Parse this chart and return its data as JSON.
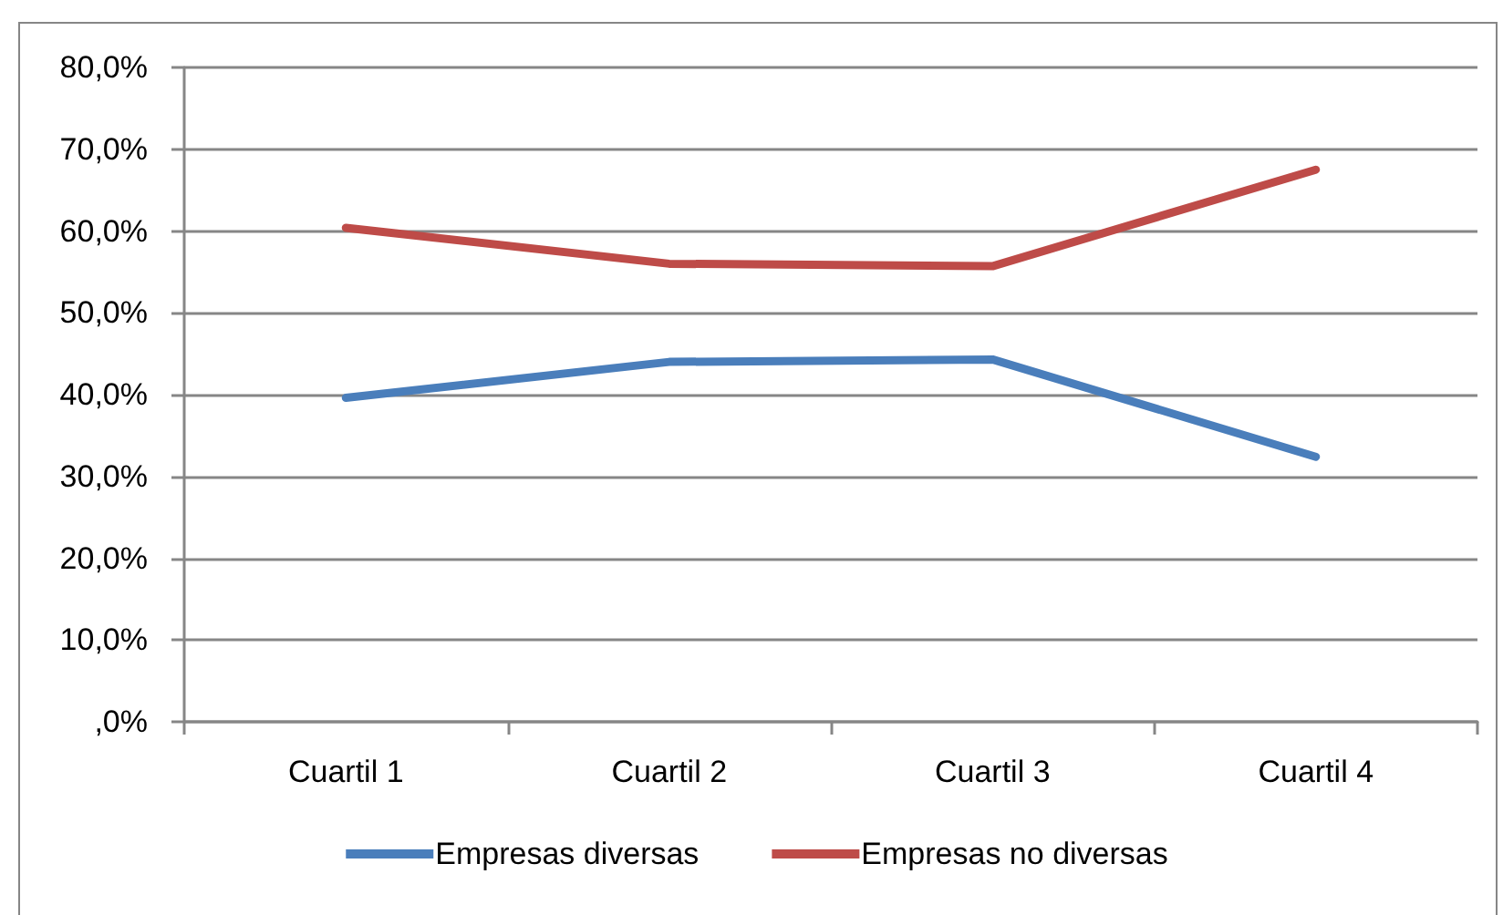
{
  "chart_data": {
    "type": "line",
    "categories": [
      "Cuartil 1",
      "Cuartil 2",
      "Cuartil 3",
      "Cuartil 4"
    ],
    "series": [
      {
        "name": "Empresas diversas",
        "color": "#4a7ebb",
        "values": [
          39.6,
          44.0,
          44.3,
          32.4
        ]
      },
      {
        "name": "Empresas no diversas",
        "color": "#be4b48",
        "values": [
          60.4,
          56.0,
          55.7,
          67.5
        ]
      }
    ],
    "ylim": [
      0,
      80
    ],
    "yticks": [
      {
        "value": 0,
        "label": ",0%"
      },
      {
        "value": 10,
        "label": "10,0%"
      },
      {
        "value": 20,
        "label": "20,0%"
      },
      {
        "value": 30,
        "label": "30,0%"
      },
      {
        "value": 40,
        "label": "40,0%"
      },
      {
        "value": 50,
        "label": "50,0%"
      },
      {
        "value": 60,
        "label": "60,0%"
      },
      {
        "value": 70,
        "label": "70,0%"
      },
      {
        "value": 80,
        "label": "80,0%"
      }
    ],
    "grid": "y",
    "legend": "bottom",
    "marker": "none",
    "line_style": "solid"
  }
}
